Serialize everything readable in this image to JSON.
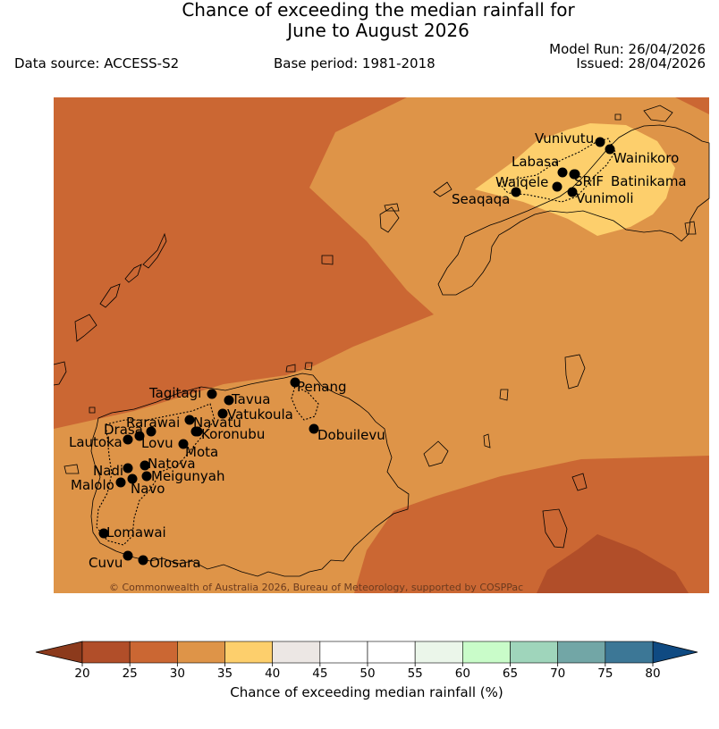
{
  "header": {
    "title_line1": "Chance of exceeding the median rainfall for",
    "title_line2": "June to August 2026",
    "data_source": "Data source: ACCESS-S2",
    "base_period": "Base period: 1981-2018",
    "model_run": "Model Run: 26/04/2026",
    "issued": "Issued: 28/04/2026"
  },
  "map": {
    "copyright": "© Commonwealth of Australia 2026, Bureau of Meteorology, supported by COSPPac",
    "colors": {
      "c20_25": "#b14e29",
      "c25_30": "#cb6733",
      "c30_35": "#de9448",
      "c35_40": "#fdcf6c",
      "c40_45": "#ece7e4",
      "c45_55": "#ffffff",
      "c55_60": "#ebf6ea",
      "c60_65": "#c9fcc9",
      "c65_70": "#9fd5bb",
      "c70_75": "#72a6a6",
      "c75_80": "#3c7796",
      "over80": "#0f4a82",
      "under20": "#8c3a1c",
      "coast": "#000000"
    },
    "towns": [
      {
        "name": "Vunivutu"
      },
      {
        "name": "Wainikoro"
      },
      {
        "name": "Labasa"
      },
      {
        "name": "SRIF"
      },
      {
        "name": "Batinikama"
      },
      {
        "name": "Waiqele"
      },
      {
        "name": "Vunimoli"
      },
      {
        "name": "Seaqaqa"
      },
      {
        "name": "Penang"
      },
      {
        "name": "Tagitagi"
      },
      {
        "name": "Tavua"
      },
      {
        "name": "Vatukoula"
      },
      {
        "name": "Rarawai"
      },
      {
        "name": "Navatu"
      },
      {
        "name": "Drasa"
      },
      {
        "name": "Koronubu"
      },
      {
        "name": "Lautoka"
      },
      {
        "name": "Lovu"
      },
      {
        "name": "Mota"
      },
      {
        "name": "Dobuilevu"
      },
      {
        "name": "Natova"
      },
      {
        "name": "Nadi"
      },
      {
        "name": "Meigunyah"
      },
      {
        "name": "Malolo"
      },
      {
        "name": "Navo"
      },
      {
        "name": "Lomawai"
      },
      {
        "name": "Cuvu"
      },
      {
        "name": "Olosara"
      }
    ]
  },
  "colorbar": {
    "title": "Chance of exceeding median rainfall (%)",
    "ticks": [
      "20",
      "25",
      "30",
      "35",
      "40",
      "45",
      "50",
      "55",
      "60",
      "65",
      "70",
      "75",
      "80"
    ],
    "bins": [
      {
        "range": "20-25",
        "color": "#b14e29"
      },
      {
        "range": "25-30",
        "color": "#cb6733"
      },
      {
        "range": "30-35",
        "color": "#de9448"
      },
      {
        "range": "35-40",
        "color": "#fdcf6c"
      },
      {
        "range": "40-45",
        "color": "#ece7e4"
      },
      {
        "range": "45-50",
        "color": "#ffffff"
      },
      {
        "range": "50-55",
        "color": "#ffffff"
      },
      {
        "range": "55-60",
        "color": "#ebf6ea"
      },
      {
        "range": "60-65",
        "color": "#c9fcc9"
      },
      {
        "range": "65-70",
        "color": "#9fd5bb"
      },
      {
        "range": "70-75",
        "color": "#72a6a6"
      },
      {
        "range": "75-80",
        "color": "#3c7796"
      }
    ],
    "under_color": "#8c3a1c",
    "over_color": "#0f4a82"
  }
}
